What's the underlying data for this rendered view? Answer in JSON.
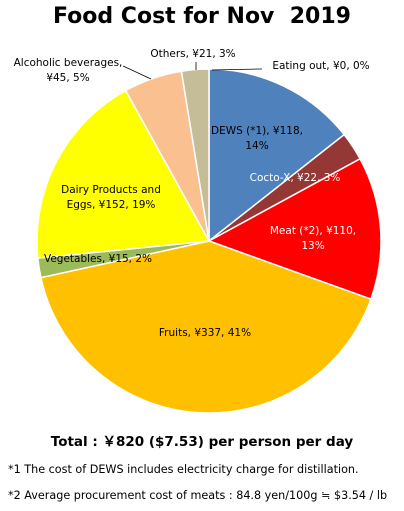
{
  "chart_data": {
    "type": "pie",
    "title": "Food Cost for Nov  2019",
    "slices": [
      {
        "name": "DEWS (*1)",
        "label_line1": "DEWS (*1), ¥118,",
        "label_line2": "14%",
        "value": 118,
        "percent": 14,
        "color": "#4f81bd"
      },
      {
        "name": "Cocto-X",
        "label_line1": "Cocto-X, ¥22, 3%",
        "label_line2": "",
        "value": 22,
        "percent": 3,
        "color": "#953735"
      },
      {
        "name": "Meat (*2)",
        "label_line1": "Meat (*2), ¥110,",
        "label_line2": "13%",
        "value": 110,
        "percent": 13,
        "color": "#ff0000"
      },
      {
        "name": "Fruits",
        "label_line1": "Fruits, ¥337, 41%",
        "label_line2": "",
        "value": 337,
        "percent": 41,
        "color": "#ffc000"
      },
      {
        "name": "Vegetables",
        "label_line1": "Vegetables, ¥15, 2%",
        "label_line2": "",
        "value": 15,
        "percent": 2,
        "color": "#9bbb59"
      },
      {
        "name": "Dairy Products and Eggs",
        "label_line1": "Dairy Products and",
        "label_line2": "Eggs, ¥152, 19%",
        "value": 152,
        "percent": 19,
        "color": "#ffff00"
      },
      {
        "name": "Alcoholic beverages",
        "label_line1": "Alcoholic beverages,",
        "label_line2": "¥45, 5%",
        "value": 45,
        "percent": 5,
        "color": "#fac090"
      },
      {
        "name": "Others",
        "label_line1": "Others, ¥21, 3%",
        "label_line2": "",
        "value": 21,
        "percent": 3,
        "color": "#c4bd97"
      },
      {
        "name": "Eating out",
        "label_line1": "Eating out, ¥0, 0%",
        "label_line2": "",
        "value": 0,
        "percent": 0,
        "color": "#8064a2"
      }
    ]
  },
  "total_text": "Total : ￥820 ($7.53) per person per day",
  "footnotes": {
    "note1": "*1 The cost of DEWS includes electricity charge for distillation.",
    "note2": "*2 Average procurement cost of meats : 84.8 yen/100g ≒ $3.54 / lb"
  }
}
